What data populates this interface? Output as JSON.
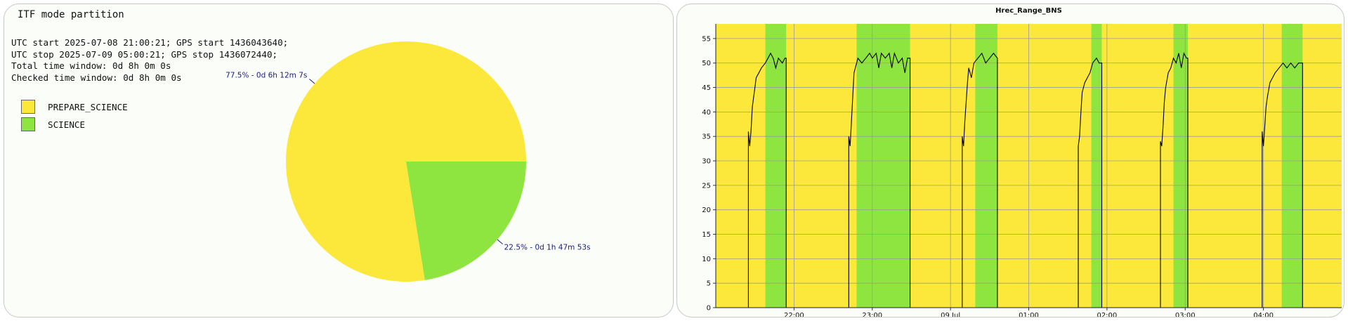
{
  "left": {
    "title": "ITF mode partition",
    "info": [
      "UTC start 2025-07-08 21:00:21; GPS start 1436043640;",
      "UTC stop 2025-07-09 05:00:21; GPS stop 1436072440;",
      "Total time window: 0d 8h 0m 0s",
      "Checked time window: 0d 8h 0m 0s"
    ]
  },
  "colors": {
    "prepare_science": "#fce83a",
    "science": "#8ee53f",
    "label_text": "#1a1a80",
    "curve": "#000000",
    "grid": "#9a9a9a"
  },
  "chart_data": [
    {
      "type": "pie",
      "title": "ITF mode partition",
      "legend_position": "left",
      "slices": [
        {
          "name": "PREPARE_SCIENCE",
          "value": 77.5,
          "label": "77.5% - 0d 6h 12m 7s",
          "color": "#fce83a"
        },
        {
          "name": "SCIENCE",
          "value": 22.5,
          "label": "22.5% - 0d 1h 47m 53s",
          "color": "#8ee53f"
        }
      ]
    },
    {
      "type": "line",
      "title": "Hrec_Range_BNS",
      "xlabel": "",
      "ylabel": "",
      "x_range": [
        "2025-07-08 21:00",
        "2025-07-09 05:00"
      ],
      "ylim": [
        0,
        58
      ],
      "y_ticks": [
        0,
        5,
        10,
        15,
        20,
        25,
        30,
        35,
        40,
        45,
        50,
        55
      ],
      "x_ticks": [
        {
          "t": "2025-07-08 22:00",
          "label": "22:00"
        },
        {
          "t": "2025-07-08 23:00",
          "label": "23:00"
        },
        {
          "t": "2025-07-09 00:00",
          "label": "09 Jul"
        },
        {
          "t": "2025-07-09 01:00",
          "label": "01:00"
        },
        {
          "t": "2025-07-09 02:00",
          "label": "02:00"
        },
        {
          "t": "2025-07-09 03:00",
          "label": "03:00"
        },
        {
          "t": "2025-07-09 04:00",
          "label": "04:00"
        }
      ],
      "grid": true,
      "background_state": "PREPARE_SCIENCE",
      "science_intervals": [
        [
          "2025-07-08 21:38",
          "2025-07-08 21:54"
        ],
        [
          "2025-07-08 22:48",
          "2025-07-08 23:29"
        ],
        [
          "2025-07-09 00:19",
          "2025-07-09 00:36"
        ],
        [
          "2025-07-09 01:48",
          "2025-07-09 01:56"
        ],
        [
          "2025-07-09 02:51",
          "2025-07-09 03:02"
        ],
        [
          "2025-07-09 04:14",
          "2025-07-09 04:30"
        ]
      ],
      "series": [
        {
          "segments": [
            [
              [
                "2025-07-08 21:25",
                0
              ],
              [
                "2025-07-08 21:25",
                36
              ],
              [
                "2025-07-08 21:26",
                33
              ],
              [
                "2025-07-08 21:27",
                36
              ],
              [
                "2025-07-08 21:28",
                41
              ],
              [
                "2025-07-08 21:30",
                45
              ],
              [
                "2025-07-08 21:31",
                47
              ],
              [
                "2025-07-08 21:33",
                48
              ],
              [
                "2025-07-08 21:35",
                49
              ],
              [
                "2025-07-08 21:38",
                50
              ],
              [
                "2025-07-08 21:40",
                51
              ],
              [
                "2025-07-08 21:42",
                52
              ],
              [
                "2025-07-08 21:44",
                51
              ],
              [
                "2025-07-08 21:46",
                49
              ],
              [
                "2025-07-08 21:48",
                51
              ],
              [
                "2025-07-08 21:51",
                50
              ],
              [
                "2025-07-08 21:53",
                51
              ],
              [
                "2025-07-08 21:54",
                51
              ],
              [
                "2025-07-08 21:54",
                0
              ]
            ],
            [
              [
                "2025-07-08 22:42",
                0
              ],
              [
                "2025-07-08 22:42",
                35
              ],
              [
                "2025-07-08 22:43",
                33
              ],
              [
                "2025-07-08 22:44",
                38
              ],
              [
                "2025-07-08 22:45",
                43
              ],
              [
                "2025-07-08 22:46",
                48
              ],
              [
                "2025-07-08 22:47",
                49
              ],
              [
                "2025-07-08 22:49",
                51
              ],
              [
                "2025-07-08 22:52",
                50
              ],
              [
                "2025-07-08 22:55",
                51
              ],
              [
                "2025-07-08 22:58",
                52
              ],
              [
                "2025-07-08 23:00",
                51
              ],
              [
                "2025-07-08 23:03",
                52
              ],
              [
                "2025-07-08 23:05",
                49
              ],
              [
                "2025-07-08 23:07",
                52
              ],
              [
                "2025-07-08 23:10",
                51
              ],
              [
                "2025-07-08 23:13",
                52
              ],
              [
                "2025-07-08 23:15",
                49
              ],
              [
                "2025-07-08 23:17",
                52
              ],
              [
                "2025-07-08 23:20",
                50
              ],
              [
                "2025-07-08 23:23",
                51
              ],
              [
                "2025-07-08 23:25",
                48
              ],
              [
                "2025-07-08 23:27",
                51
              ],
              [
                "2025-07-08 23:29",
                51
              ],
              [
                "2025-07-08 23:29",
                0
              ]
            ],
            [
              [
                "2025-07-09 00:09",
                0
              ],
              [
                "2025-07-09 00:09",
                35
              ],
              [
                "2025-07-09 00:10",
                33
              ],
              [
                "2025-07-09 00:11",
                38
              ],
              [
                "2025-07-09 00:12",
                42
              ],
              [
                "2025-07-09 00:13",
                46
              ],
              [
                "2025-07-09 00:14",
                49
              ],
              [
                "2025-07-09 00:16",
                47
              ],
              [
                "2025-07-09 00:18",
                50
              ],
              [
                "2025-07-09 00:21",
                51
              ],
              [
                "2025-07-09 00:24",
                52
              ],
              [
                "2025-07-09 00:27",
                50
              ],
              [
                "2025-07-09 00:30",
                51
              ],
              [
                "2025-07-09 00:33",
                52
              ],
              [
                "2025-07-09 00:36",
                51
              ],
              [
                "2025-07-09 00:36",
                0
              ]
            ],
            [
              [
                "2025-07-09 01:38",
                0
              ],
              [
                "2025-07-09 01:38",
                33
              ],
              [
                "2025-07-09 01:39",
                35
              ],
              [
                "2025-07-09 01:40",
                40
              ],
              [
                "2025-07-09 01:41",
                44
              ],
              [
                "2025-07-09 01:43",
                46
              ],
              [
                "2025-07-09 01:45",
                47
              ],
              [
                "2025-07-09 01:47",
                48
              ],
              [
                "2025-07-09 01:49",
                50
              ],
              [
                "2025-07-09 01:52",
                51
              ],
              [
                "2025-07-09 01:54",
                50
              ],
              [
                "2025-07-09 01:56",
                50
              ],
              [
                "2025-07-09 01:56",
                0
              ]
            ],
            [
              [
                "2025-07-09 02:41",
                0
              ],
              [
                "2025-07-09 02:41",
                34
              ],
              [
                "2025-07-09 02:42",
                33
              ],
              [
                "2025-07-09 02:43",
                37
              ],
              [
                "2025-07-09 02:44",
                42
              ],
              [
                "2025-07-09 02:45",
                45
              ],
              [
                "2025-07-09 02:47",
                48
              ],
              [
                "2025-07-09 02:49",
                49
              ],
              [
                "2025-07-09 02:51",
                51
              ],
              [
                "2025-07-09 02:53",
                50
              ],
              [
                "2025-07-09 02:55",
                52
              ],
              [
                "2025-07-09 02:57",
                49
              ],
              [
                "2025-07-09 02:59",
                52
              ],
              [
                "2025-07-09 03:01",
                51
              ],
              [
                "2025-07-09 03:02",
                51
              ],
              [
                "2025-07-09 03:02",
                0
              ]
            ],
            [
              [
                "2025-07-09 03:59",
                0
              ],
              [
                "2025-07-09 03:59",
                36
              ],
              [
                "2025-07-09 04:00",
                33
              ],
              [
                "2025-07-09 04:01",
                37
              ],
              [
                "2025-07-09 04:02",
                41
              ],
              [
                "2025-07-09 04:03",
                43
              ],
              [
                "2025-07-09 04:05",
                46
              ],
              [
                "2025-07-09 04:07",
                47
              ],
              [
                "2025-07-09 04:09",
                48
              ],
              [
                "2025-07-09 04:12",
                49
              ],
              [
                "2025-07-09 04:15",
                50
              ],
              [
                "2025-07-09 04:18",
                49
              ],
              [
                "2025-07-09 04:21",
                50
              ],
              [
                "2025-07-09 04:24",
                49
              ],
              [
                "2025-07-09 04:27",
                50
              ],
              [
                "2025-07-09 04:30",
                50
              ],
              [
                "2025-07-09 04:30",
                0
              ]
            ]
          ]
        }
      ]
    }
  ]
}
